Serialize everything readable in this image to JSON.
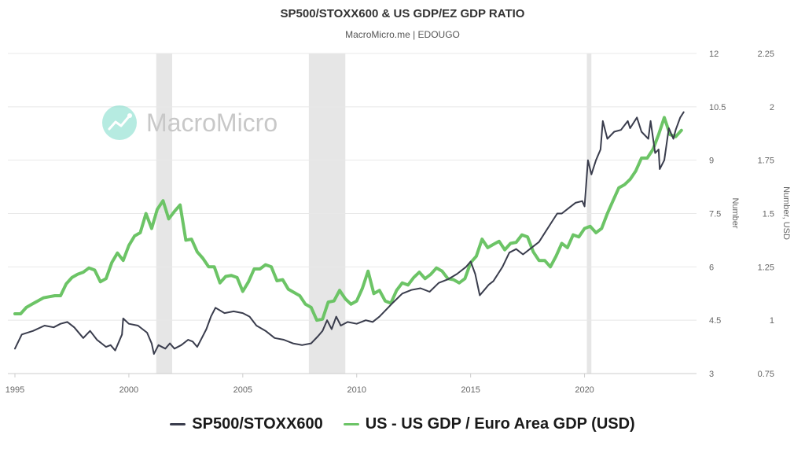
{
  "header": {
    "title": "SP500/STOXX600 & US GDP/EZ GDP RATIO",
    "subtitle": "MacroMicro.me | EDOUGO"
  },
  "watermark": {
    "text": "MacroMicro",
    "icon": "chart-growth-icon"
  },
  "colors": {
    "series1": "#3a3d4d",
    "series2": "#6cc466",
    "recession": "#e6e6e6",
    "grid": "#e8e8e8",
    "axis_text": "#666666"
  },
  "chart_data": {
    "type": "line",
    "title": "SP500/STOXX600 & US GDP/EZ GDP RATIO",
    "subtitle": "MacroMicro.me | EDOUGO",
    "x_ticks": [
      "1995",
      "2000",
      "2005",
      "2010",
      "2015",
      "2020"
    ],
    "xlim": [
      1995,
      2024.5
    ],
    "left_axis": {
      "label": "Number",
      "ylim": [
        3,
        12
      ],
      "ticks": [
        "3",
        "4.5",
        "6",
        "7.5",
        "9",
        "10.5",
        "12"
      ]
    },
    "right_axis": {
      "label": "Number, USD",
      "ylim": [
        0.75,
        2.25
      ],
      "ticks": [
        "0.75",
        "1",
        "1.25",
        "1.5",
        "1.75",
        "2",
        "2.25"
      ]
    },
    "recession_bands": [
      [
        2001.2,
        2001.9
      ],
      [
        2007.9,
        2009.5
      ],
      [
        2020.1,
        2020.3
      ]
    ],
    "grid": true,
    "legend_position": "bottom",
    "series": [
      {
        "name": "SP500/STOXX600",
        "axis": "left",
        "points": [
          [
            1995.0,
            3.7
          ],
          [
            1995.3,
            4.1
          ],
          [
            1995.8,
            4.2
          ],
          [
            1996.3,
            4.35
          ],
          [
            1996.7,
            4.3
          ],
          [
            1997.0,
            4.4
          ],
          [
            1997.3,
            4.45
          ],
          [
            1997.6,
            4.3
          ],
          [
            1998.0,
            4.0
          ],
          [
            1998.3,
            4.2
          ],
          [
            1998.6,
            3.95
          ],
          [
            1999.0,
            3.75
          ],
          [
            1999.2,
            3.8
          ],
          [
            1999.4,
            3.65
          ],
          [
            1999.7,
            4.1
          ],
          [
            1999.75,
            4.55
          ],
          [
            2000.0,
            4.4
          ],
          [
            2000.4,
            4.35
          ],
          [
            2000.8,
            4.15
          ],
          [
            2001.0,
            3.85
          ],
          [
            2001.1,
            3.55
          ],
          [
            2001.3,
            3.8
          ],
          [
            2001.6,
            3.7
          ],
          [
            2001.8,
            3.85
          ],
          [
            2002.0,
            3.7
          ],
          [
            2002.3,
            3.8
          ],
          [
            2002.6,
            3.95
          ],
          [
            2002.8,
            3.9
          ],
          [
            2003.0,
            3.75
          ],
          [
            2003.2,
            4.0
          ],
          [
            2003.4,
            4.25
          ],
          [
            2003.6,
            4.6
          ],
          [
            2003.8,
            4.85
          ],
          [
            2004.2,
            4.7
          ],
          [
            2004.6,
            4.75
          ],
          [
            2005.0,
            4.7
          ],
          [
            2005.3,
            4.6
          ],
          [
            2005.6,
            4.35
          ],
          [
            2006.0,
            4.2
          ],
          [
            2006.4,
            4.0
          ],
          [
            2006.8,
            3.95
          ],
          [
            2007.2,
            3.85
          ],
          [
            2007.6,
            3.8
          ],
          [
            2008.0,
            3.85
          ],
          [
            2008.3,
            4.05
          ],
          [
            2008.5,
            4.2
          ],
          [
            2008.7,
            4.5
          ],
          [
            2008.9,
            4.25
          ],
          [
            2009.1,
            4.6
          ],
          [
            2009.3,
            4.35
          ],
          [
            2009.6,
            4.45
          ],
          [
            2010.0,
            4.4
          ],
          [
            2010.4,
            4.5
          ],
          [
            2010.7,
            4.45
          ],
          [
            2011.0,
            4.6
          ],
          [
            2011.3,
            4.8
          ],
          [
            2011.6,
            5.0
          ],
          [
            2012.0,
            5.25
          ],
          [
            2012.4,
            5.35
          ],
          [
            2012.8,
            5.4
          ],
          [
            2013.2,
            5.3
          ],
          [
            2013.6,
            5.55
          ],
          [
            2014.0,
            5.65
          ],
          [
            2014.4,
            5.8
          ],
          [
            2014.8,
            6.0
          ],
          [
            2015.0,
            6.15
          ],
          [
            2015.2,
            5.8
          ],
          [
            2015.4,
            5.2
          ],
          [
            2015.6,
            5.35
          ],
          [
            2015.8,
            5.5
          ],
          [
            2016.0,
            5.6
          ],
          [
            2016.4,
            6.0
          ],
          [
            2016.7,
            6.4
          ],
          [
            2017.0,
            6.5
          ],
          [
            2017.3,
            6.35
          ],
          [
            2017.6,
            6.5
          ],
          [
            2018.0,
            6.7
          ],
          [
            2018.3,
            7.0
          ],
          [
            2018.6,
            7.3
          ],
          [
            2018.8,
            7.5
          ],
          [
            2019.0,
            7.5
          ],
          [
            2019.3,
            7.65
          ],
          [
            2019.6,
            7.8
          ],
          [
            2019.9,
            7.85
          ],
          [
            2020.0,
            7.7
          ],
          [
            2020.15,
            9.0
          ],
          [
            2020.3,
            8.6
          ],
          [
            2020.5,
            9.0
          ],
          [
            2020.7,
            9.3
          ],
          [
            2020.8,
            10.1
          ],
          [
            2021.0,
            9.6
          ],
          [
            2021.3,
            9.8
          ],
          [
            2021.6,
            9.85
          ],
          [
            2021.9,
            10.1
          ],
          [
            2022.0,
            9.9
          ],
          [
            2022.3,
            10.2
          ],
          [
            2022.5,
            9.8
          ],
          [
            2022.8,
            9.6
          ],
          [
            2022.9,
            10.1
          ],
          [
            2023.1,
            9.2
          ],
          [
            2023.25,
            9.3
          ],
          [
            2023.3,
            8.75
          ],
          [
            2023.5,
            9.0
          ],
          [
            2023.7,
            9.9
          ],
          [
            2023.9,
            9.6
          ],
          [
            2024.0,
            9.85
          ],
          [
            2024.2,
            10.2
          ],
          [
            2024.35,
            10.35
          ]
        ]
      },
      {
        "name": "US - US GDP / Euro Area GDP (USD)",
        "axis": "right",
        "points": [
          [
            1995.0,
            1.03
          ],
          [
            1995.25,
            1.03
          ],
          [
            1995.5,
            1.06
          ],
          [
            1995.75,
            1.075
          ],
          [
            1996.0,
            1.09
          ],
          [
            1996.25,
            1.105
          ],
          [
            1996.5,
            1.11
          ],
          [
            1996.75,
            1.115
          ],
          [
            1997.0,
            1.115
          ],
          [
            1997.25,
            1.17
          ],
          [
            1997.5,
            1.2
          ],
          [
            1997.75,
            1.215
          ],
          [
            1998.0,
            1.225
          ],
          [
            1998.25,
            1.245
          ],
          [
            1998.5,
            1.235
          ],
          [
            1998.75,
            1.18
          ],
          [
            1999.0,
            1.195
          ],
          [
            1999.25,
            1.27
          ],
          [
            1999.5,
            1.315
          ],
          [
            1999.75,
            1.28
          ],
          [
            2000.0,
            1.35
          ],
          [
            2000.25,
            1.395
          ],
          [
            2000.5,
            1.41
          ],
          [
            2000.75,
            1.5
          ],
          [
            2001.0,
            1.43
          ],
          [
            2001.25,
            1.52
          ],
          [
            2001.5,
            1.56
          ],
          [
            2001.75,
            1.475
          ],
          [
            2002.0,
            1.51
          ],
          [
            2002.25,
            1.54
          ],
          [
            2002.5,
            1.375
          ],
          [
            2002.75,
            1.38
          ],
          [
            2003.0,
            1.32
          ],
          [
            2003.25,
            1.29
          ],
          [
            2003.5,
            1.25
          ],
          [
            2003.75,
            1.25
          ],
          [
            2004.0,
            1.175
          ],
          [
            2004.25,
            1.205
          ],
          [
            2004.5,
            1.21
          ],
          [
            2004.75,
            1.2
          ],
          [
            2005.0,
            1.135
          ],
          [
            2005.25,
            1.18
          ],
          [
            2005.5,
            1.24
          ],
          [
            2005.75,
            1.24
          ],
          [
            2006.0,
            1.26
          ],
          [
            2006.25,
            1.25
          ],
          [
            2006.5,
            1.185
          ],
          [
            2006.75,
            1.19
          ],
          [
            2007.0,
            1.145
          ],
          [
            2007.25,
            1.13
          ],
          [
            2007.5,
            1.115
          ],
          [
            2007.75,
            1.075
          ],
          [
            2008.0,
            1.06
          ],
          [
            2008.25,
            1.0
          ],
          [
            2008.5,
            1.005
          ],
          [
            2008.75,
            1.085
          ],
          [
            2009.0,
            1.09
          ],
          [
            2009.25,
            1.14
          ],
          [
            2009.5,
            1.1
          ],
          [
            2009.75,
            1.075
          ],
          [
            2010.0,
            1.09
          ],
          [
            2010.25,
            1.15
          ],
          [
            2010.5,
            1.23
          ],
          [
            2010.75,
            1.125
          ],
          [
            2011.0,
            1.14
          ],
          [
            2011.25,
            1.09
          ],
          [
            2011.5,
            1.08
          ],
          [
            2011.75,
            1.14
          ],
          [
            2012.0,
            1.175
          ],
          [
            2012.25,
            1.165
          ],
          [
            2012.5,
            1.2
          ],
          [
            2012.75,
            1.225
          ],
          [
            2013.0,
            1.195
          ],
          [
            2013.25,
            1.215
          ],
          [
            2013.5,
            1.245
          ],
          [
            2013.75,
            1.23
          ],
          [
            2014.0,
            1.195
          ],
          [
            2014.25,
            1.19
          ],
          [
            2014.5,
            1.175
          ],
          [
            2014.75,
            1.195
          ],
          [
            2015.0,
            1.27
          ],
          [
            2015.25,
            1.3
          ],
          [
            2015.5,
            1.38
          ],
          [
            2015.75,
            1.34
          ],
          [
            2016.0,
            1.355
          ],
          [
            2016.25,
            1.37
          ],
          [
            2016.5,
            1.33
          ],
          [
            2016.75,
            1.36
          ],
          [
            2017.0,
            1.365
          ],
          [
            2017.25,
            1.4
          ],
          [
            2017.5,
            1.39
          ],
          [
            2017.75,
            1.32
          ],
          [
            2018.0,
            1.28
          ],
          [
            2018.25,
            1.28
          ],
          [
            2018.5,
            1.25
          ],
          [
            2018.75,
            1.3
          ],
          [
            2019.0,
            1.36
          ],
          [
            2019.25,
            1.34
          ],
          [
            2019.5,
            1.4
          ],
          [
            2019.75,
            1.39
          ],
          [
            2020.0,
            1.43
          ],
          [
            2020.25,
            1.44
          ],
          [
            2020.5,
            1.41
          ],
          [
            2020.75,
            1.43
          ],
          [
            2021.0,
            1.5
          ],
          [
            2021.25,
            1.56
          ],
          [
            2021.5,
            1.62
          ],
          [
            2021.75,
            1.635
          ],
          [
            2022.0,
            1.66
          ],
          [
            2022.25,
            1.7
          ],
          [
            2022.5,
            1.76
          ],
          [
            2022.75,
            1.76
          ],
          [
            2023.0,
            1.8
          ],
          [
            2023.25,
            1.87
          ],
          [
            2023.5,
            1.95
          ],
          [
            2023.75,
            1.87
          ],
          [
            2024.0,
            1.86
          ],
          [
            2024.25,
            1.89
          ]
        ]
      }
    ]
  }
}
